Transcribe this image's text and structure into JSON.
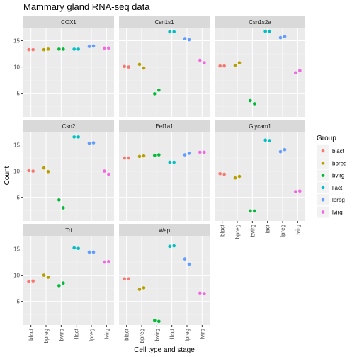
{
  "chart_data": {
    "type": "scatter",
    "title": "Mammary gland RNA-seq data",
    "xlabel": "Cell type and stage",
    "ylabel": "Count",
    "categories": [
      "blact",
      "bpreg",
      "bvirg",
      "llact",
      "lpreg",
      "lvirg"
    ],
    "yticks": [
      5,
      10,
      15
    ],
    "ylim": [
      0.5,
      17.5
    ],
    "legend": {
      "title": "Group",
      "position": "right",
      "entries": [
        "blact",
        "bpreg",
        "bvirg",
        "llact",
        "lpreg",
        "lvirg"
      ]
    },
    "colors": {
      "blact": "#F8766D",
      "bpreg": "#B79F00",
      "bvirg": "#00BA38",
      "llact": "#00BFC4",
      "lpreg": "#619CFF",
      "lvirg": "#F564E3"
    },
    "panels": [
      {
        "name": "COX1",
        "points": [
          [
            0,
            13.3
          ],
          [
            0,
            13.3
          ],
          [
            1,
            13.3
          ],
          [
            1,
            13.4
          ],
          [
            2,
            13.4
          ],
          [
            2,
            13.4
          ],
          [
            3,
            13.4
          ],
          [
            3,
            13.4
          ],
          [
            4,
            13.9
          ],
          [
            4,
            14.0
          ],
          [
            5,
            13.6
          ],
          [
            5,
            13.6
          ]
        ]
      },
      {
        "name": "Csn1s1",
        "points": [
          [
            0,
            10.1
          ],
          [
            0,
            10.0
          ],
          [
            1,
            10.5
          ],
          [
            1,
            9.8
          ],
          [
            2,
            4.9
          ],
          [
            2,
            5.6
          ],
          [
            3,
            16.7
          ],
          [
            3,
            16.7
          ],
          [
            4,
            15.4
          ],
          [
            4,
            15.2
          ],
          [
            5,
            11.3
          ],
          [
            5,
            10.8
          ]
        ]
      },
      {
        "name": "Csn1s2a",
        "points": [
          [
            0,
            10.2
          ],
          [
            0,
            10.2
          ],
          [
            1,
            10.3
          ],
          [
            1,
            10.8
          ],
          [
            2,
            3.6
          ],
          [
            2,
            3.0
          ],
          [
            3,
            16.8
          ],
          [
            3,
            16.8
          ],
          [
            4,
            15.6
          ],
          [
            4,
            15.8
          ],
          [
            5,
            8.9
          ],
          [
            5,
            9.3
          ]
        ]
      },
      {
        "name": "Csn2",
        "points": [
          [
            0,
            10.1
          ],
          [
            0,
            10.0
          ],
          [
            1,
            10.6
          ],
          [
            1,
            9.9
          ],
          [
            2,
            4.5
          ],
          [
            2,
            3.0
          ],
          [
            3,
            16.5
          ],
          [
            3,
            16.5
          ],
          [
            4,
            15.3
          ],
          [
            4,
            15.4
          ],
          [
            5,
            10.0
          ],
          [
            5,
            9.4
          ]
        ]
      },
      {
        "name": "Eef1a1",
        "points": [
          [
            0,
            12.5
          ],
          [
            0,
            12.5
          ],
          [
            1,
            12.8
          ],
          [
            1,
            12.9
          ],
          [
            2,
            13.0
          ],
          [
            2,
            13.1
          ],
          [
            3,
            11.7
          ],
          [
            3,
            11.7
          ],
          [
            4,
            13.1
          ],
          [
            4,
            13.4
          ],
          [
            5,
            13.6
          ],
          [
            5,
            13.6
          ]
        ]
      },
      {
        "name": "Glycam1",
        "points": [
          [
            0,
            9.5
          ],
          [
            0,
            9.4
          ],
          [
            1,
            8.7
          ],
          [
            1,
            9.0
          ],
          [
            2,
            2.4
          ],
          [
            2,
            2.4
          ],
          [
            3,
            15.9
          ],
          [
            3,
            15.8
          ],
          [
            4,
            13.7
          ],
          [
            4,
            14.1
          ],
          [
            5,
            6.1
          ],
          [
            5,
            6.2
          ]
        ]
      },
      {
        "name": "Trf",
        "points": [
          [
            0,
            8.8
          ],
          [
            0,
            8.9
          ],
          [
            1,
            10.0
          ],
          [
            1,
            9.6
          ],
          [
            2,
            8.0
          ],
          [
            2,
            8.5
          ],
          [
            3,
            15.2
          ],
          [
            3,
            15.1
          ],
          [
            4,
            14.4
          ],
          [
            4,
            14.4
          ],
          [
            5,
            12.5
          ],
          [
            5,
            12.6
          ]
        ]
      },
      {
        "name": "Wap",
        "points": [
          [
            0,
            9.3
          ],
          [
            0,
            9.3
          ],
          [
            1,
            7.3
          ],
          [
            1,
            7.6
          ],
          [
            2,
            1.4
          ],
          [
            2,
            1.2
          ],
          [
            3,
            15.5
          ],
          [
            3,
            15.6
          ],
          [
            4,
            13.1
          ],
          [
            4,
            12.1
          ],
          [
            5,
            6.6
          ],
          [
            5,
            6.5
          ]
        ]
      }
    ]
  }
}
